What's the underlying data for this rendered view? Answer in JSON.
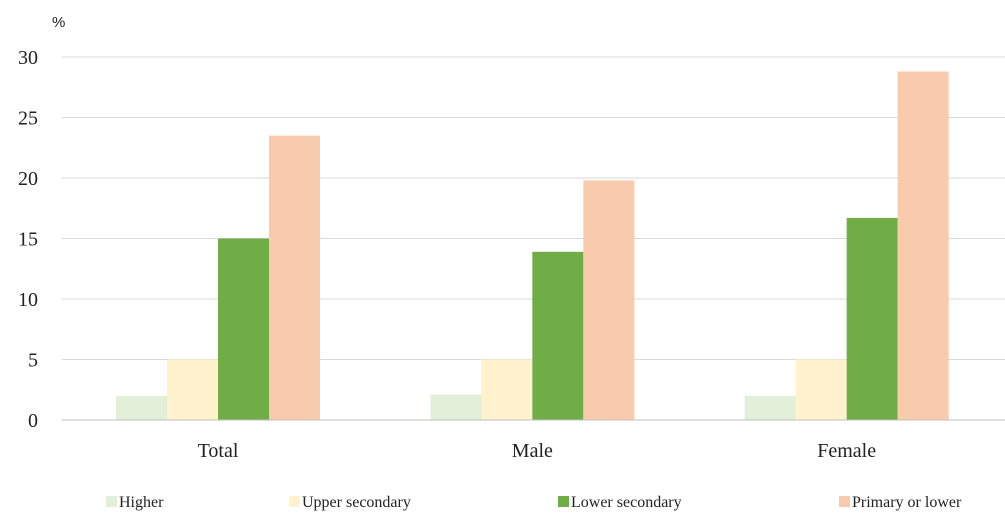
{
  "chart_data": {
    "type": "bar",
    "unit_label": "%",
    "categories": [
      "Total",
      "Male",
      "Female"
    ],
    "series": [
      {
        "name": "Higher",
        "color": "#e2efd9",
        "values": [
          2.0,
          2.1,
          2.0
        ]
      },
      {
        "name": "Upper secondary",
        "color": "#fff2cc",
        "values": [
          5.0,
          5.0,
          5.0
        ]
      },
      {
        "name": "Lower secondary",
        "color": "#70ad47",
        "values": [
          15.0,
          13.9,
          16.7
        ]
      },
      {
        "name": "Primary or lower",
        "color": "#f8cbad",
        "values": [
          23.5,
          19.8,
          28.8
        ]
      }
    ],
    "ylim": [
      0,
      30
    ],
    "yticks": [
      0,
      5,
      10,
      15,
      20,
      25,
      30
    ],
    "grid": true,
    "legend_position": "bottom"
  }
}
